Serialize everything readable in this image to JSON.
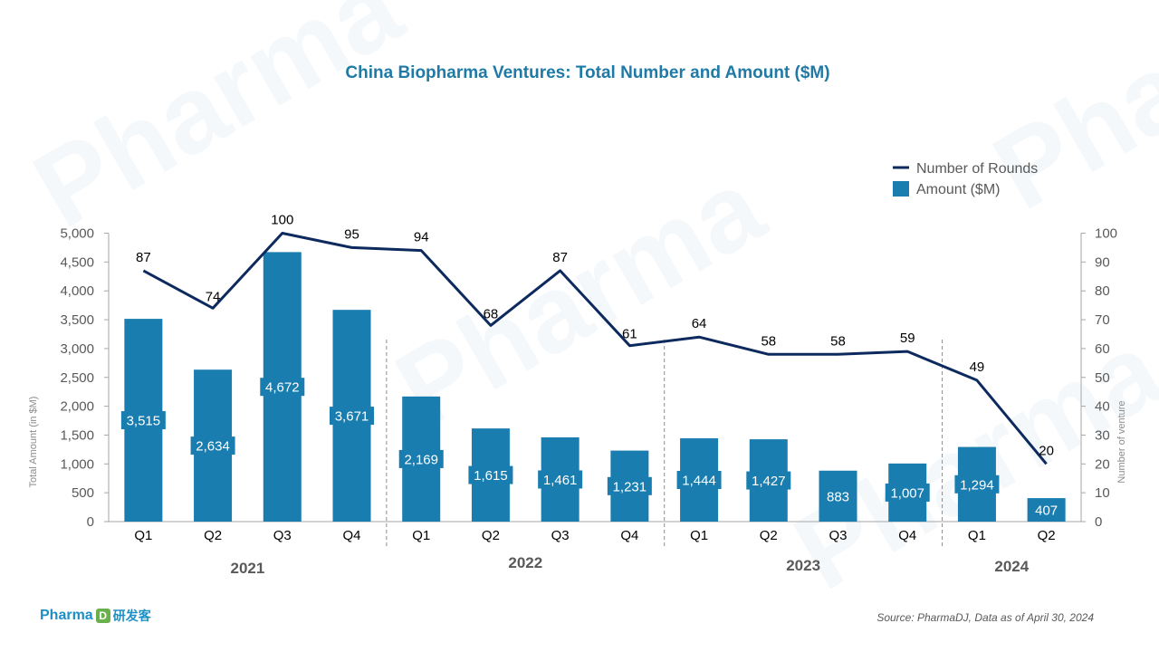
{
  "brand": {
    "logo_text": "Pharma",
    "logo_mark": "D",
    "logo_cn": "研发客"
  },
  "watermark": "Pharma",
  "source": "Source: PharmaDJ, Data as of April 30, 2024",
  "chart_data": {
    "type": "bar",
    "title": "China Biopharma Ventures: Total Number and Amount ($M)",
    "categories": [
      "Q1",
      "Q2",
      "Q3",
      "Q4",
      "Q1",
      "Q2",
      "Q3",
      "Q4",
      "Q1",
      "Q2",
      "Q3",
      "Q4",
      "Q1",
      "Q2"
    ],
    "groups": [
      {
        "label": "2021",
        "start": 0,
        "end": 3
      },
      {
        "label": "2022",
        "start": 4,
        "end": 7
      },
      {
        "label": "2023",
        "start": 8,
        "end": 11
      },
      {
        "label": "2024",
        "start": 12,
        "end": 13
      }
    ],
    "series": [
      {
        "name": "Amount ($M)",
        "type": "bar",
        "axis": "left",
        "color": "#1a7db0",
        "values": [
          3515,
          2634,
          4672,
          3671,
          2169,
          1615,
          1461,
          1231,
          1444,
          1427,
          883,
          1007,
          1294,
          407
        ],
        "labels": [
          "3,515",
          "2,634",
          "4,672",
          "3,671",
          "2,169",
          "1,615",
          "1,461",
          "1,231",
          "1,444",
          "1,427",
          "883",
          "1,007",
          "1,294",
          "407"
        ]
      },
      {
        "name": "Number of Rounds",
        "type": "line",
        "axis": "right",
        "color": "#0d2a5e",
        "values": [
          87,
          74,
          100,
          95,
          94,
          68,
          87,
          61,
          64,
          58,
          58,
          59,
          49,
          20
        ]
      }
    ],
    "ylabel": "Total Amount (in $M)",
    "y2label": "Number of venture",
    "ylim": [
      0,
      5000
    ],
    "y2lim": [
      0,
      100
    ],
    "yticks": [
      "0",
      "500",
      "1,000",
      "1,500",
      "2,000",
      "2,500",
      "3,000",
      "3,500",
      "4,000",
      "4,500",
      "5,000"
    ],
    "y2ticks": [
      "0",
      "10",
      "20",
      "30",
      "40",
      "50",
      "60",
      "70",
      "80",
      "90",
      "100"
    ],
    "legend_position": "top-right",
    "grid": false
  }
}
